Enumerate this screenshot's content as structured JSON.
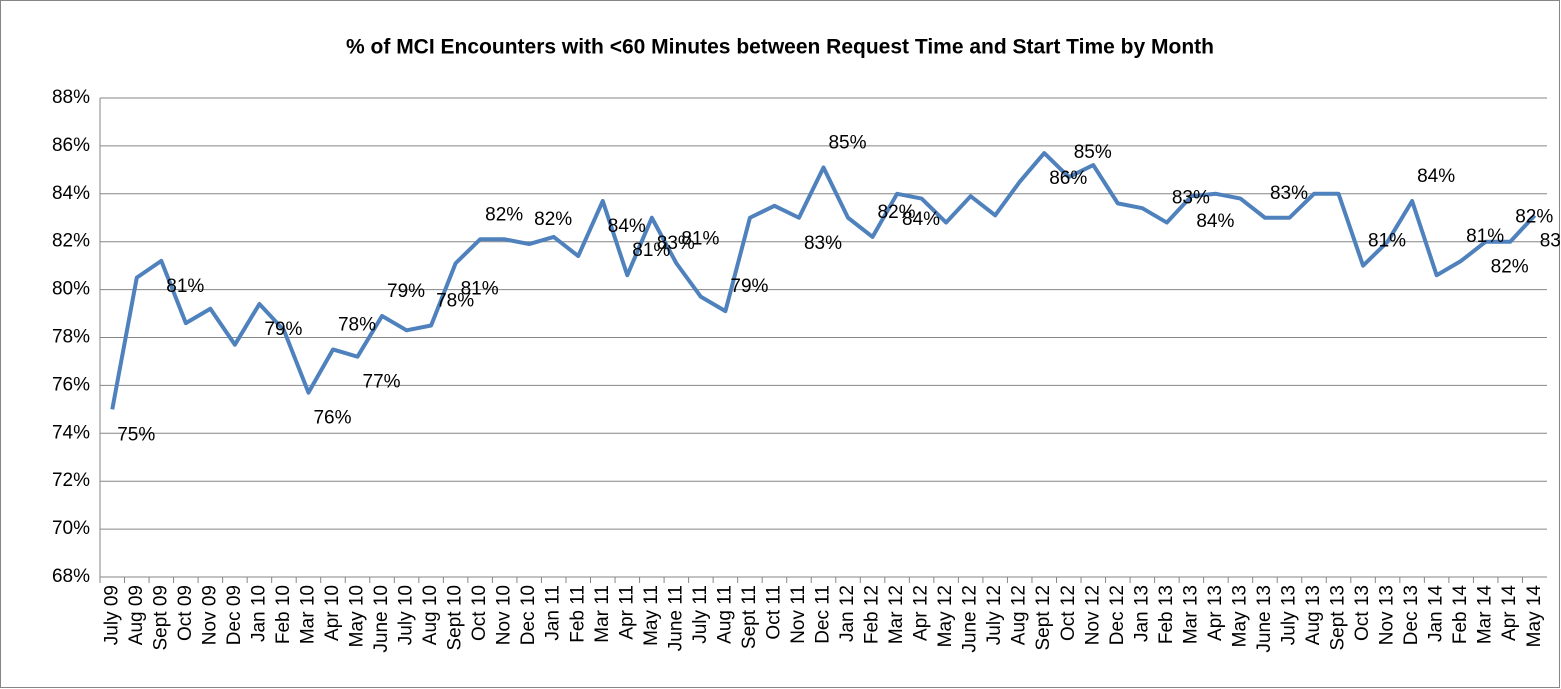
{
  "chart_data": {
    "type": "line",
    "title": "% of MCI Encounters with <60 Minutes between Request Time and Start Time by Month",
    "categories": [
      "July 09",
      "Aug 09",
      "Sept 09",
      "Oct 09",
      "Nov 09",
      "Dec 09",
      "Jan 10",
      "Feb 10",
      "Mar 10",
      "Apr 10",
      "May 10",
      "June 10",
      "July 10",
      "Aug 10",
      "Sept 10",
      "Oct 10",
      "Nov 10",
      "Dec 10",
      "Jan 11",
      "Feb 11",
      "Mar 11",
      "Apr 11",
      "May 11",
      "June 11",
      "July 11",
      "Aug 11",
      "Sept 11",
      "Oct 11",
      "Nov 11",
      "Dec 11",
      "Jan 12",
      "Feb 12",
      "Mar 12",
      "Apr 12",
      "May 12",
      "June 12",
      "July 12",
      "Aug 12",
      "Sept 12",
      "Oct 12",
      "Nov 12",
      "Dec 12",
      "Jan 13",
      "Feb 13",
      "Mar 13",
      "Apr 13",
      "May 13",
      "June 13",
      "July 13",
      "Aug 13",
      "Sept 13",
      "Oct 13",
      "Nov 13",
      "Dec 13",
      "Jan 14",
      "Feb 14",
      "Mar 14",
      "Apr 14",
      "May 14"
    ],
    "series": [
      {
        "color": "#4f81bd",
        "values": [
          75.0,
          80.5,
          81.2,
          78.6,
          79.2,
          77.7,
          79.4,
          78.3,
          75.7,
          77.5,
          77.2,
          78.9,
          78.3,
          78.5,
          81.1,
          82.1,
          82.1,
          81.9,
          82.2,
          81.4,
          83.7,
          80.6,
          83.0,
          81.1,
          79.7,
          79.1,
          83.0,
          83.5,
          83.0,
          85.1,
          83.0,
          82.2,
          84.0,
          83.8,
          82.8,
          83.9,
          83.1,
          84.5,
          85.7,
          84.7,
          85.2,
          83.6,
          83.4,
          82.8,
          83.9,
          84.0,
          83.8,
          83.0,
          83.0,
          84.0,
          84.0,
          81.0,
          82.0,
          83.7,
          80.6,
          81.2,
          82.0,
          82.0,
          83.1
        ],
        "value_labels": [
          "75%",
          null,
          "81%",
          null,
          null,
          null,
          "79%",
          null,
          "76%",
          "78%",
          "77%",
          "79%",
          null,
          "78%",
          "81%",
          "82%",
          null,
          "82%",
          null,
          null,
          "84%",
          "81%",
          "83%",
          "81%",
          null,
          "79%",
          null,
          null,
          "83%",
          "85%",
          null,
          "82%",
          "84%",
          null,
          null,
          null,
          null,
          null,
          "86%",
          "85%",
          null,
          null,
          null,
          "83%",
          "84%",
          null,
          null,
          "83%",
          null,
          null,
          null,
          "81%",
          null,
          "84%",
          null,
          "81%",
          "82%",
          "82%",
          "83%"
        ]
      }
    ],
    "ylim": [
      68,
      88
    ],
    "yticks": [
      {
        "value": 68,
        "label": "68%"
      },
      {
        "value": 70,
        "label": "70%"
      },
      {
        "value": 72,
        "label": "72%"
      },
      {
        "value": 74,
        "label": "74%"
      },
      {
        "value": 76,
        "label": "76%"
      },
      {
        "value": 78,
        "label": "78%"
      },
      {
        "value": 80,
        "label": "80%"
      },
      {
        "value": 82,
        "label": "82%"
      },
      {
        "value": 84,
        "label": "84%"
      },
      {
        "value": 86,
        "label": "86%"
      },
      {
        "value": 88,
        "label": "88%"
      }
    ],
    "grid": true
  }
}
